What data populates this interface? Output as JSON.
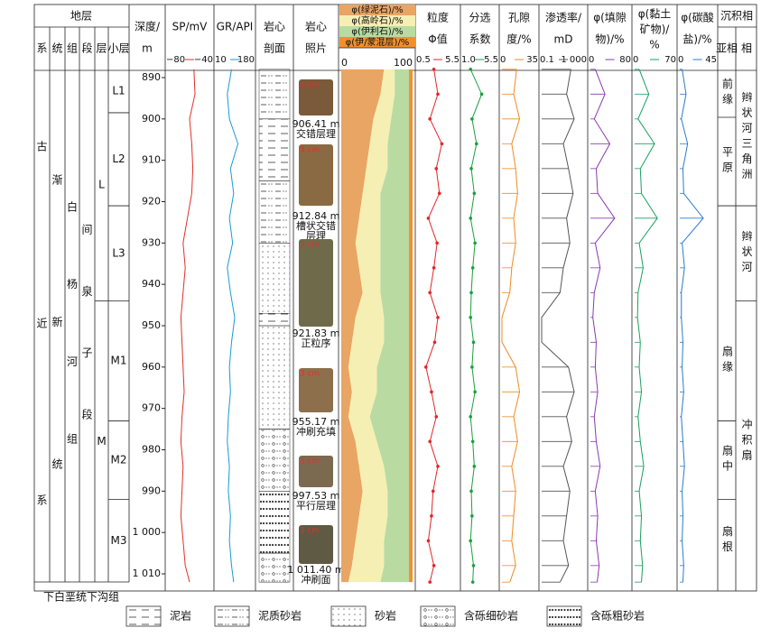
{
  "header": {
    "strata": "地层",
    "levels": [
      "系",
      "统",
      "组",
      "段",
      "层",
      "小层"
    ],
    "depth": [
      "深度/",
      "m"
    ],
    "core_section": [
      "岩心",
      "剖面"
    ],
    "core_photo": [
      "岩心",
      "照片"
    ],
    "facies": "沉积相",
    "subfacies": "亚相",
    "facies_col": "相"
  },
  "strata": {
    "system": [
      "古",
      "近",
      "系"
    ],
    "series": [
      "渐",
      "新",
      "统"
    ],
    "formation": [
      "白",
      "杨",
      "河",
      "组"
    ],
    "member": [
      "间",
      "泉",
      "子",
      "段"
    ],
    "layers": [
      {
        "name": "L",
        "top": 888,
        "bottom": 944
      },
      {
        "name": "M",
        "top": 944,
        "bottom": 1012
      }
    ],
    "sublayers": [
      {
        "name": "L1",
        "top": 888,
        "bottom": 898.5
      },
      {
        "name": "L2",
        "top": 898.5,
        "bottom": 921
      },
      {
        "name": "L3",
        "top": 921,
        "bottom": 944
      },
      {
        "name": "M1",
        "top": 944,
        "bottom": 973
      },
      {
        "name": "M2",
        "top": 973,
        "bottom": 992
      },
      {
        "name": "M3",
        "top": 992,
        "bottom": 1012
      }
    ],
    "underlying": "下白垩统下沟组"
  },
  "depth_axis": {
    "ylim": [
      888,
      1012
    ],
    "ticks": [
      890,
      900,
      910,
      920,
      930,
      940,
      950,
      960,
      970,
      980,
      990,
      {
        "value": 1000,
        "label": "1 000"
      },
      {
        "value": 1010,
        "label": "1 010"
      }
    ]
  },
  "facies": {
    "subfacies": [
      {
        "name": "前缘",
        "top": 888,
        "bottom": 899.6
      },
      {
        "name": "平原",
        "top": 899.6,
        "bottom": 921
      },
      {
        "name": "扇缘",
        "top": 944,
        "bottom": 973
      },
      {
        "name": "扇中",
        "top": 973,
        "bottom": 992
      },
      {
        "name": "扇根",
        "top": 992,
        "bottom": 1012
      }
    ],
    "facies": [
      {
        "name": "辫状河三角洲",
        "top": 888,
        "bottom": 921
      },
      {
        "name": "辫状河",
        "top": 921,
        "bottom": 944
      },
      {
        "name": "冲积扇",
        "top": 944,
        "bottom": 1012
      }
    ]
  },
  "photos": [
    {
      "scale": "3 cm",
      "caption": [
        "906.41 m",
        "交错层理"
      ]
    },
    {
      "scale": "3 cm",
      "caption": [
        "912.84 m",
        "槽状交错",
        "层理"
      ]
    },
    {
      "scale": "3 cm",
      "caption": [
        "921.83 m",
        "正粒序"
      ]
    },
    {
      "scale": "3 cm",
      "caption": [
        "955.17 m",
        "冲刷充填"
      ]
    },
    {
      "scale": "3 cm",
      "caption": [
        "997.53 m",
        "平行层理"
      ]
    },
    {
      "scale": "3 cm",
      "caption": [
        "1 011.40 m",
        "冲刷面"
      ]
    }
  ],
  "lithology": {
    "intervals": [
      {
        "top": 888,
        "bottom": 900,
        "type": 1
      },
      {
        "top": 900,
        "bottom": 915,
        "type": 0
      },
      {
        "top": 915,
        "bottom": 930,
        "type": 1
      },
      {
        "top": 930,
        "bottom": 947,
        "type": 2
      },
      {
        "top": 947,
        "bottom": 950,
        "type": 0
      },
      {
        "top": 950,
        "bottom": 975,
        "type": 2
      },
      {
        "top": 975,
        "bottom": 990,
        "type": 3
      },
      {
        "top": 990,
        "bottom": 1005,
        "type": 4
      },
      {
        "top": 1005,
        "bottom": 1012,
        "type": 3
      }
    ]
  },
  "legend": [
    "泥岩",
    "泥质砂岩",
    "砂岩",
    "含砾细砂岩",
    "含砾粗砂岩"
  ],
  "composition": {
    "scale": [
      0,
      100
    ],
    "series": [
      {
        "name": "φ(绿泥石)/%",
        "color": "#e9a563",
        "values": [
          60,
          55,
          45,
          40,
          35,
          30,
          25,
          20,
          25,
          30,
          20,
          15,
          10,
          15,
          10,
          20,
          25,
          30,
          25,
          20,
          15,
          10
        ]
      },
      {
        "name": "φ(高岭石)/%",
        "color": "#f6efb4",
        "values": [
          15,
          20,
          25,
          25,
          30,
          25,
          30,
          35,
          30,
          25,
          40,
          45,
          40,
          35,
          30,
          30,
          35,
          35,
          40,
          40,
          45,
          45
        ]
      },
      {
        "name": "φ(伊利石)/%",
        "color": "#b9dba2",
        "values": [
          20,
          20,
          25,
          30,
          30,
          40,
          40,
          40,
          40,
          40,
          35,
          35,
          45,
          45,
          55,
          45,
          35,
          30,
          30,
          35,
          35,
          40
        ]
      },
      {
        "name": "φ(伊/蒙混层)/%",
        "color": "#f2902c",
        "values": [
          5,
          5,
          5,
          5,
          5,
          5,
          5,
          5,
          5,
          5,
          5,
          5,
          5,
          5,
          5,
          5,
          5,
          5,
          5,
          5,
          5,
          5
        ]
      }
    ]
  },
  "log": {
    "depth": [
      888,
      894,
      900,
      906,
      912,
      918,
      924,
      930,
      936,
      942,
      948,
      954,
      960,
      966,
      972,
      978,
      984,
      990,
      996,
      1002,
      1008,
      1012
    ],
    "curves": [
      {
        "title": [
          "SP/mV"
        ],
        "range": [
          {
            "value": -80,
            "label": "−80"
          },
          {
            "value": -40,
            "label": "−40"
          }
        ],
        "color": "#e0302a",
        "values": [
          -56,
          -55,
          -60,
          -58,
          -57,
          -58,
          -62,
          -66,
          -64,
          -66,
          -68,
          -67,
          -66,
          -65,
          -67,
          -68,
          -66,
          -67,
          -68,
          -66,
          -64,
          -60
        ]
      },
      {
        "title": [
          "GR/API"
        ],
        "range": [
          10,
          180
        ],
        "color": "#1a9ad6",
        "values": [
          80,
          60,
          70,
          110,
          75,
          90,
          70,
          85,
          60,
          75,
          95,
          80,
          70,
          75,
          65,
          60,
          70,
          65,
          75,
          70,
          80,
          90
        ]
      },
      {
        "title": [
          "粒度",
          "Φ值"
        ],
        "range": [
          0.5,
          5.5
        ],
        "color": "#e3262a",
        "dots": true,
        "values": [
          2.5,
          3.0,
          2.0,
          3.5,
          2.8,
          3.2,
          1.8,
          2.9,
          2.5,
          2.0,
          3.0,
          2.6,
          1.5,
          2.2,
          2.8,
          2.0,
          3.0,
          2.4,
          2.2,
          1.8,
          2.5,
          2.0
        ]
      },
      {
        "title": [
          "分选",
          "系数"
        ],
        "range": [
          {
            "value": 1,
            "label": "1.0"
          },
          5.5
        ],
        "color": "#1aa040",
        "dots": true,
        "values": [
          2.0,
          3.5,
          2.2,
          2.8,
          2.1,
          2.5,
          2.0,
          2.6,
          2.3,
          2.1,
          2.0,
          2.4,
          2.2,
          2.6,
          2.0,
          2.3,
          2.5,
          2.1,
          2.2,
          2.0,
          2.4,
          2.3
        ]
      },
      {
        "title": [
          "孔隙",
          "度/%"
        ],
        "range": [
          0,
          35
        ],
        "color": "#f08a24",
        "bars": true,
        "values": [
          15,
          12,
          18,
          10,
          14,
          16,
          12,
          14,
          10,
          8,
          0,
          0,
          14,
          18,
          12,
          16,
          10,
          14,
          12,
          10,
          14,
          8
        ]
      },
      {
        "title": [
          "渗透率/",
          "mD"
        ],
        "range": [
          0.1,
          {
            "value": 1000,
            "label": "1 000"
          }
        ],
        "log": true,
        "color": "#555555",
        "bars": true,
        "values": [
          50,
          20,
          100,
          10,
          30,
          80,
          20,
          40,
          10,
          5,
          0.1,
          0.1,
          30,
          100,
          20,
          60,
          10,
          40,
          20,
          10,
          30,
          5
        ]
      },
      {
        "title": [
          "φ(填隙",
          "物)/%"
        ],
        "range": [
          0,
          80
        ],
        "color": "#8a3ab0",
        "bars": true,
        "values": [
          10,
          30,
          8,
          40,
          12,
          15,
          50,
          10,
          20,
          8,
          5,
          12,
          10,
          15,
          8,
          12,
          20,
          10,
          15,
          12,
          18,
          14
        ]
      },
      {
        "title": [
          "φ(黏土",
          "矿物)/",
          "%"
        ],
        "range": [
          0,
          70
        ],
        "color": "#1aa060",
        "bars": true,
        "values": [
          8,
          25,
          6,
          35,
          10,
          12,
          40,
          8,
          15,
          6,
          5,
          10,
          8,
          12,
          6,
          10,
          16,
          8,
          12,
          10,
          14,
          12
        ]
      },
      {
        "title": [
          "φ(碳酸",
          "盐)/%"
        ],
        "range": [
          0,
          45
        ],
        "color": "#2a7ad0",
        "bars": true,
        "values": [
          3,
          8,
          2,
          10,
          4,
          5,
          30,
          3,
          6,
          2,
          2,
          4,
          3,
          5,
          2,
          4,
          6,
          3,
          4,
          3,
          5,
          4
        ]
      }
    ]
  }
}
